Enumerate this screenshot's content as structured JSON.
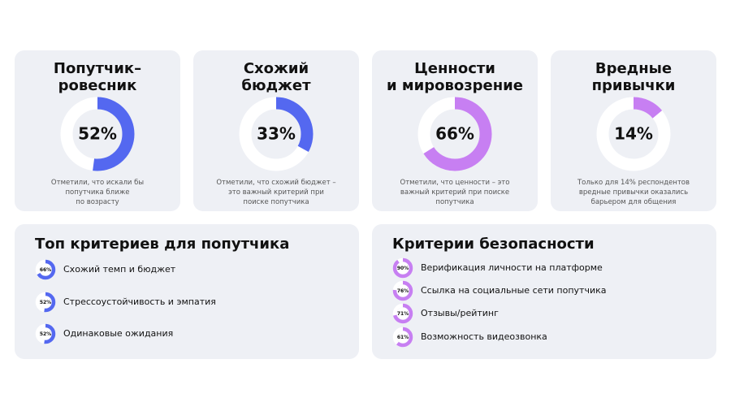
{
  "cards": [
    {
      "title": "Попутчик–\nровесник",
      "value": 52,
      "value_label": "52%",
      "note": "Отметили, что искали бы\nпопутчика ближе\nпо возрасту",
      "color": "#5468f0"
    },
    {
      "title": "Схожий\nбюджет",
      "value": 33,
      "value_label": "33%",
      "note": "Отметили, что схожий бюджет –\nэто важный критерий при\nпоиске попутчика",
      "color": "#5468f0"
    },
    {
      "title": "Ценности\nи мировозрение",
      "value": 66,
      "value_label": "66%",
      "note": "Отметили, что ценности –  это\nважный критерий при поиске\nпопутчика",
      "color": "#c77ff2"
    },
    {
      "title": "Вредные\nпривычки",
      "value": 14,
      "value_label": "14%",
      "note": "Только для 14% респондентов\nвредные привычки оказались\nбарьером для общения",
      "color": "#c77ff2"
    }
  ],
  "lists": [
    {
      "title": "Топ критериев для попутчика",
      "color": "#5468f0",
      "items": [
        {
          "value": 66,
          "value_label": "66%",
          "text": "Схожий темп и бюджет"
        },
        {
          "value": 52,
          "value_label": "52%",
          "text": "Стрессоустойчивость и эмпатия"
        },
        {
          "value": 52,
          "value_label": "52%",
          "text": "Одинаковые ожидания"
        }
      ]
    },
    {
      "title": "Критерии безопасности",
      "color": "#c77ff2",
      "items": [
        {
          "value": 90,
          "value_label": "90%",
          "text": "Верификация личности на платформе"
        },
        {
          "value": 76,
          "value_label": "76%",
          "text": "Ссылка на социальные сети попутчика"
        },
        {
          "value": 71,
          "value_label": "71%",
          "text": "Отзывы/рейтинг"
        },
        {
          "value": 61,
          "value_label": "61%",
          "text": "Возможность видеозвонка"
        }
      ]
    }
  ]
}
